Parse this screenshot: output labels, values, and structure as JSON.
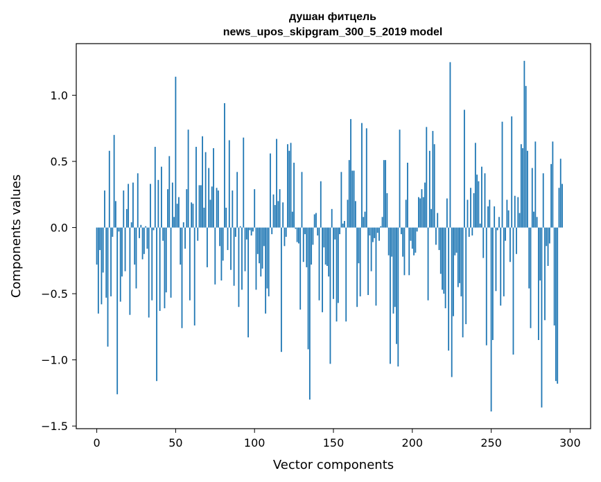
{
  "chart_data": {
    "type": "bar",
    "title": "душан фитцель",
    "subtitle": "news_upos_skipgram_300_5_2019 model",
    "xlabel": "Vector components",
    "ylabel": "Components values",
    "xlim": [
      -13,
      313
    ],
    "ylim": [
      -1.52,
      1.39
    ],
    "x_ticks": [
      0,
      50,
      100,
      150,
      200,
      250,
      300
    ],
    "x_tick_labels": [
      "0",
      "50",
      "100",
      "150",
      "200",
      "250",
      "300"
    ],
    "y_ticks": [
      -1.5,
      -1.0,
      -0.5,
      0.0,
      0.5,
      1.0
    ],
    "y_tick_labels": [
      "−1.5",
      "−1.0",
      "−0.5",
      "0.0",
      "0.5",
      "1.0"
    ],
    "bar_color": "#1f77b4",
    "grid": false,
    "values": [
      -0.28,
      -0.65,
      -0.17,
      -0.58,
      -0.34,
      0.28,
      -0.53,
      -0.9,
      0.58,
      -0.52,
      -0.07,
      0.7,
      0.2,
      -1.26,
      -0.03,
      -0.56,
      -0.37,
      0.28,
      -0.33,
      0.14,
      0.33,
      -0.66,
      0.04,
      0.34,
      -0.28,
      -0.46,
      0.41,
      -0.08,
      0.02,
      -0.24,
      -0.2,
      0.01,
      -0.16,
      -0.68,
      0.33,
      -0.55,
      -0.02,
      0.61,
      -1.16,
      0.36,
      -0.63,
      0.46,
      -0.1,
      -0.61,
      -0.49,
      0.29,
      0.54,
      -0.53,
      0.34,
      0.08,
      1.14,
      0.18,
      0.23,
      -0.28,
      -0.76,
      0.04,
      -0.16,
      0.29,
      0.74,
      -0.55,
      0.19,
      0.18,
      -0.74,
      0.61,
      -0.1,
      0.32,
      0.32,
      0.69,
      0.15,
      0.57,
      -0.3,
      0.45,
      0.21,
      0.31,
      0.6,
      -0.43,
      0.3,
      0.28,
      -0.14,
      -0.4,
      -0.25,
      0.94,
      0.15,
      -0.17,
      0.66,
      -0.32,
      0.28,
      -0.44,
      -0.07,
      0.42,
      -0.6,
      0.01,
      -0.47,
      0.68,
      -0.33,
      -0.09,
      -0.83,
      -0.02,
      -0.06,
      -0.03,
      0.29,
      -0.47,
      -0.2,
      -0.27,
      -0.37,
      -0.31,
      -0.14,
      -0.65,
      -0.46,
      -0.52,
      0.56,
      -0.05,
      0.25,
      0.17,
      0.67,
      0.2,
      0.29,
      -0.94,
      0.19,
      -0.14,
      -0.07,
      0.63,
      0.58,
      0.64,
      0.12,
      0.49,
      -0.01,
      -0.11,
      -0.12,
      -0.62,
      0.42,
      -0.26,
      -0.05,
      -0.3,
      -0.92,
      -1.3,
      -0.28,
      -0.13,
      0.1,
      0.11,
      -0.06,
      -0.55,
      0.35,
      -0.64,
      -0.15,
      -0.28,
      -0.29,
      -0.37,
      -1.03,
      0.14,
      -0.54,
      -0.09,
      -0.71,
      -0.57,
      -0.05,
      0.42,
      0.03,
      0.05,
      -0.71,
      0.21,
      0.51,
      0.82,
      0.43,
      0.43,
      0.2,
      -0.6,
      -0.27,
      -0.52,
      0.79,
      0.08,
      0.12,
      0.75,
      -0.51,
      -0.06,
      -0.33,
      -0.11,
      -0.08,
      -0.59,
      -0.04,
      -0.1,
      0.01,
      0.08,
      0.51,
      0.51,
      0.26,
      -0.21,
      -1.03,
      -0.22,
      -0.65,
      -0.6,
      -0.88,
      -1.05,
      0.74,
      -0.05,
      -0.22,
      -0.36,
      0.21,
      0.49,
      -0.36,
      -0.1,
      -0.16,
      -0.21,
      -0.19,
      -0.03,
      0.23,
      0.22,
      0.29,
      0.23,
      0.34,
      0.76,
      -0.55,
      0.58,
      0.14,
      0.73,
      0.63,
      -0.13,
      0.11,
      -0.17,
      -0.35,
      -0.47,
      -0.5,
      -0.61,
      0.22,
      -0.93,
      1.25,
      -1.13,
      -0.67,
      -0.21,
      -0.19,
      -0.45,
      -0.42,
      -0.52,
      -0.83,
      0.89,
      -0.73,
      0.21,
      -0.07,
      0.3,
      -0.06,
      0.26,
      0.64,
      0.4,
      0.35,
      0.03,
      0.46,
      -0.23,
      0.41,
      -0.89,
      0.16,
      0.21,
      -1.39,
      -0.85,
      0.16,
      -0.48,
      -0.02,
      0.08,
      -0.59,
      0.8,
      -0.52,
      -0.1,
      0.21,
      0.13,
      -0.26,
      0.84,
      -0.96,
      0.24,
      -0.2,
      0.23,
      0.11,
      0.63,
      0.6,
      1.26,
      1.07,
      0.58,
      -0.46,
      -0.76,
      0.45,
      0.12,
      0.65,
      0.08,
      -0.85,
      -0.4,
      -1.36,
      0.41,
      -0.7,
      -0.14,
      -0.29,
      -0.12,
      0.48,
      0.65,
      -0.74,
      -1.16,
      -1.18,
      0.3,
      0.52,
      0.33
    ]
  }
}
